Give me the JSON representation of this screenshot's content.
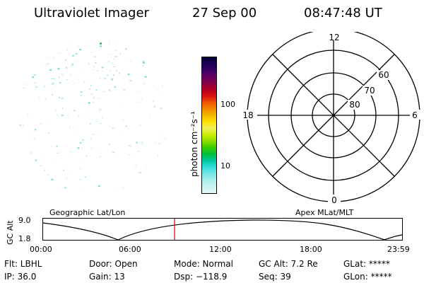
{
  "header": {
    "title": "Ultraviolet Imager",
    "date": "27 Sep 00",
    "time": "08:47:48 UT"
  },
  "colorbar": {
    "unit_label": "photon cm⁻²s⁻¹",
    "ticks": [
      "100",
      "10"
    ],
    "colors": [
      "#000033",
      "#1a0055",
      "#3a0066",
      "#660066",
      "#880044",
      "#b00020",
      "#d81010",
      "#ee5500",
      "#f28a00",
      "#f7b800",
      "#fbe100",
      "#f0f060",
      "#ccee00",
      "#88dd00",
      "#33cc00",
      "#00c040",
      "#00c8a0",
      "#33dddd",
      "#77e6e6",
      "#aaeeee",
      "#ccf2f2",
      "#e6f7f7"
    ]
  },
  "polar": {
    "mlt_labels": [
      "12",
      "18",
      "6",
      "0"
    ],
    "lat_labels": [
      "60",
      "70",
      "80"
    ]
  },
  "timeline": {
    "y_label": "GC Alt",
    "y_ticks": [
      "9.0",
      "1.8"
    ],
    "left_title": "Geographic Lat/Lon",
    "right_title": "Apex MLat/MLT",
    "x_ticks": [
      "00:00",
      "06:00",
      "12:00",
      "18:00",
      "23:59"
    ],
    "marker_time": "08:47:48",
    "marker_color": "#cc0000"
  },
  "info": {
    "filter": "Flt: LBHL",
    "ip": "IP: 36.0",
    "door": "Door: Open",
    "gain": "Gain: 13",
    "mode": "Mode: Normal",
    "dsp": "Dsp: −118.9",
    "gc_alt": "GC Alt: 7.2 Re",
    "seq": "Seq: 39",
    "glat": "GLat: *****",
    "glon": "GLon: *****"
  }
}
